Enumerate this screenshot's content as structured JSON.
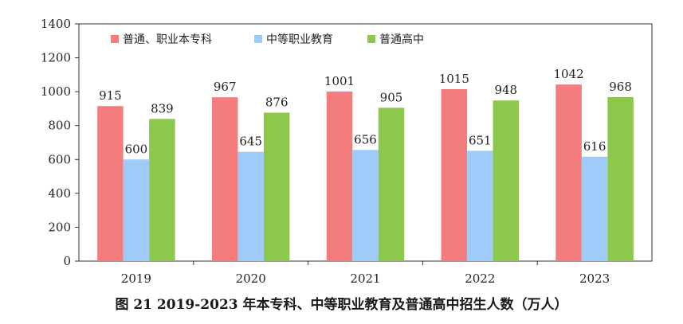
{
  "caption": "图 21    2019-2023 年本专科、中等职业教育及普通高中招生人数（万人）",
  "chart_data": {
    "type": "bar",
    "title": "",
    "xlabel": "",
    "ylabel": "",
    "categories": [
      "2019",
      "2020",
      "2021",
      "2022",
      "2023"
    ],
    "ylim": [
      0,
      1400
    ],
    "yticks": [
      0,
      200,
      400,
      600,
      800,
      1000,
      1200,
      1400
    ],
    "grid": false,
    "legend_position": "top-left",
    "series": [
      {
        "name": "普通、职业本专科",
        "color": "#f47c7c",
        "values": [
          915,
          967,
          1001,
          1015,
          1042
        ]
      },
      {
        "name": "中等职业教育",
        "color": "#9ecbf7",
        "values": [
          600,
          645,
          656,
          651,
          616
        ]
      },
      {
        "name": "普通高中",
        "color": "#8cc84b",
        "values": [
          839,
          876,
          905,
          948,
          968
        ]
      }
    ]
  }
}
